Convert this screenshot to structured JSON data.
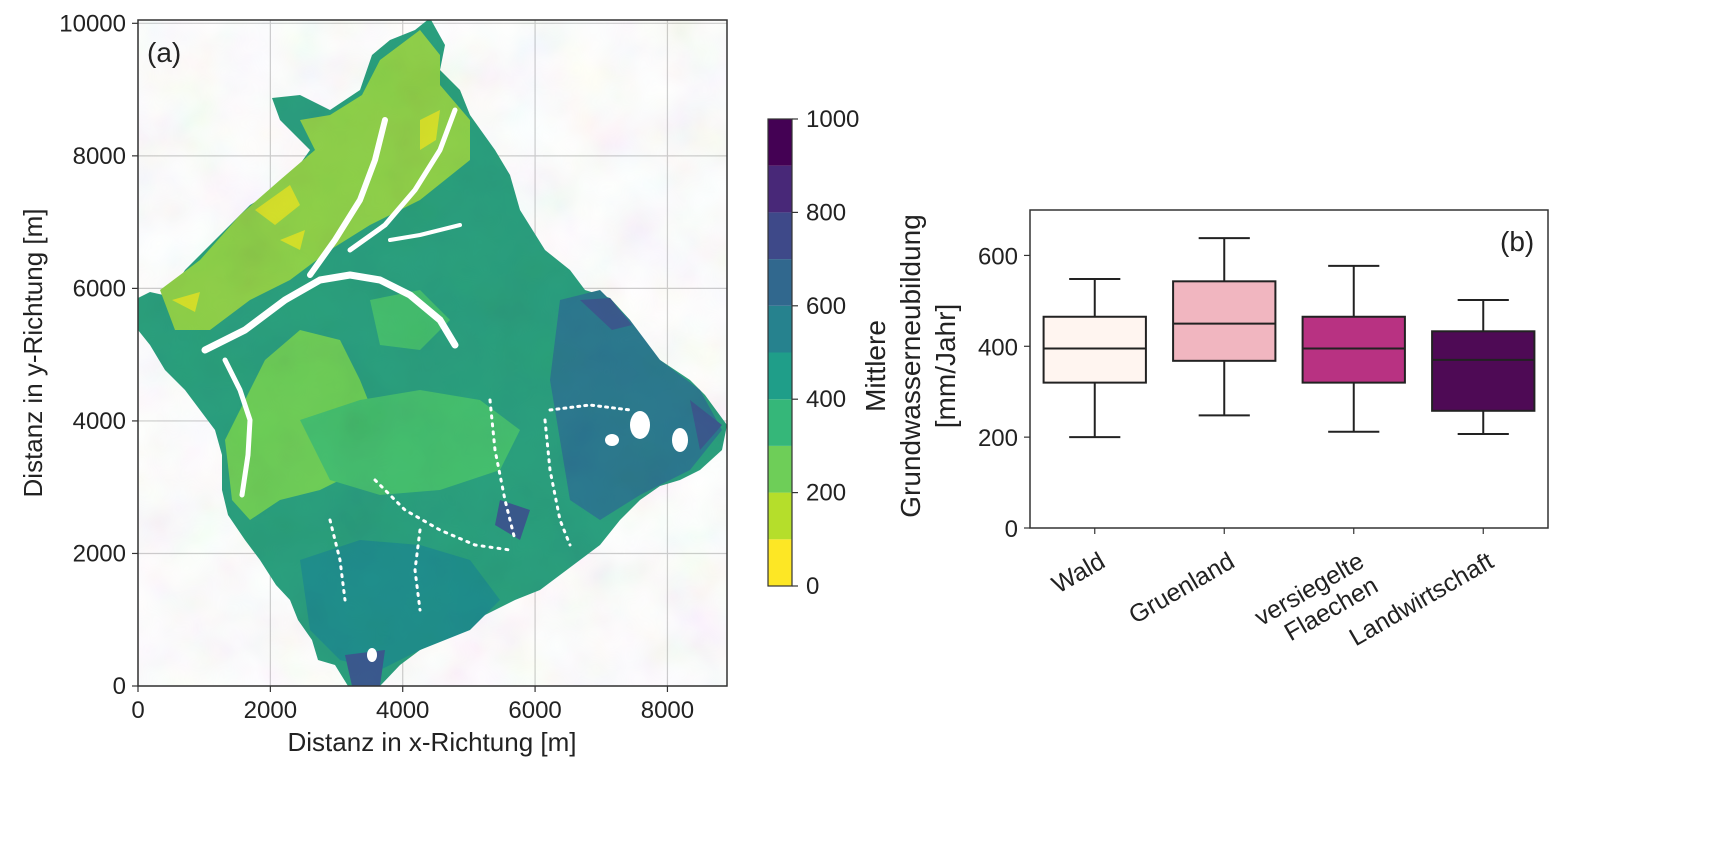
{
  "chart_data": [
    {
      "panel": "(a)",
      "type": "heatmap",
      "xlabel": "Distanz in x-Richtung [m]",
      "ylabel": "Distanz in y-Richtung [m]",
      "xlim": [
        0,
        8900
      ],
      "ylim": [
        0,
        10050
      ],
      "xticks": [
        0,
        2000,
        4000,
        6000,
        8000
      ],
      "yticks": [
        0,
        2000,
        4000,
        6000,
        8000,
        10000
      ],
      "grid": true,
      "colorbar": {
        "label_lines": [
          "Mittlere",
          "Grundwasserneubildung",
          "[mm/Jahr]"
        ],
        "range": [
          0,
          1000
        ],
        "ticks": [
          0,
          200,
          400,
          600,
          800,
          1000
        ],
        "levels": [
          0,
          100,
          200,
          300,
          400,
          500,
          600,
          700,
          800,
          900,
          1000
        ],
        "colors": [
          "#fde725",
          "#b5de2b",
          "#6ece58",
          "#35b779",
          "#1f9e89",
          "#26828e",
          "#31688e",
          "#3e4989",
          "#482878",
          "#440154"
        ]
      }
    },
    {
      "panel": "(b)",
      "type": "box",
      "categories": [
        "Wald",
        "Gruenland",
        "versiegelte Flaechen",
        "Landwirtschaft"
      ],
      "category_lines": [
        [
          "Wald"
        ],
        [
          "Gruenland"
        ],
        [
          "versiegelte",
          "Flaechen"
        ],
        [
          "Landwirtschaft"
        ]
      ],
      "boxes": [
        {
          "whisker_low": 200,
          "q1": 320,
          "median": 395,
          "q3": 465,
          "whisker_high": 548,
          "color": "#fff5f0"
        },
        {
          "whisker_low": 248,
          "q1": 368,
          "median": 450,
          "q3": 543,
          "whisker_high": 638,
          "color": "#f1b6c0"
        },
        {
          "whisker_low": 212,
          "q1": 320,
          "median": 395,
          "q3": 465,
          "whisker_high": 577,
          "color": "#b83282"
        },
        {
          "whisker_low": 207,
          "q1": 258,
          "median": 370,
          "q3": 433,
          "whisker_high": 502,
          "color": "#4e0a55"
        }
      ],
      "ylim": [
        0,
        700
      ],
      "yticks": [
        0,
        200,
        400,
        600
      ],
      "grid": false
    }
  ]
}
